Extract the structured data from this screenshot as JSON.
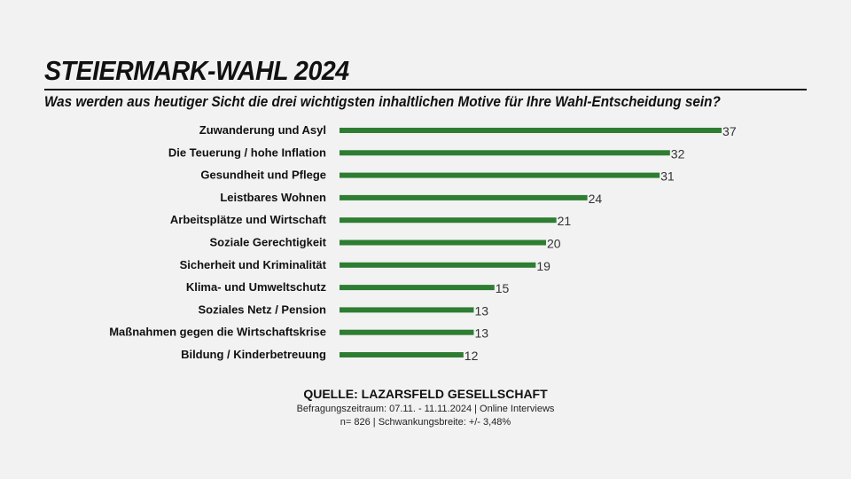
{
  "header": {
    "title": "STEIERMARK-WAHL 2024",
    "subtitle": "Was werden aus heutiger Sicht die drei wichtigsten inhaltlichen Motive für Ihre Wahl-Entscheidung sein?"
  },
  "chart_data": {
    "type": "bar",
    "orientation": "horizontal",
    "categories": [
      "Zuwanderung und Asyl",
      "Die Teuerung / hohe Inflation",
      "Gesundheit und Pflege",
      "Leistbares Wohnen",
      "Arbeitsplätze und Wirtschaft",
      "Soziale Gerechtigkeit",
      "Sicherheit und Kriminalität",
      "Klima- und Umweltschutz",
      "Soziales Netz / Pension",
      "Maßnahmen gegen die Wirtschaftskrise",
      "Bildung / Kinderbetreuung"
    ],
    "values": [
      37,
      32,
      31,
      24,
      21,
      20,
      19,
      15,
      13,
      13,
      12
    ],
    "bar_color": "#2e7d32",
    "grid": false,
    "legend": "none"
  },
  "footer": {
    "source": "QUELLE: LAZARSFELD GESELLSCHAFT",
    "line1": "Befragungszeitraum: 07.11. - 11.11.2024 | Online Interviews",
    "line2": "n= 826 | Schwankungsbreite: +/- 3,48%"
  }
}
